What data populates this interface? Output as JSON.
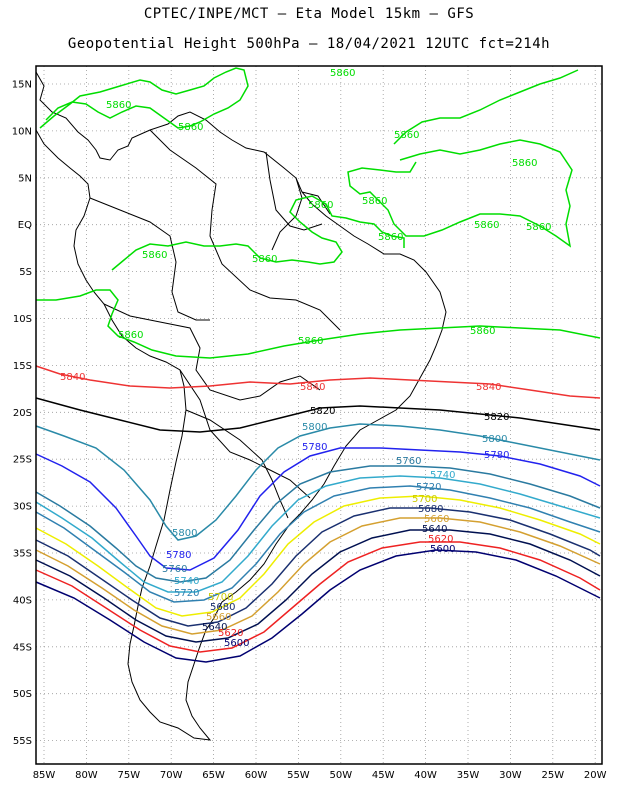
{
  "header": {
    "title_line1": "CPTEC/INPE/MCT –  Eta Model 15km – GFS",
    "title_line2": "Geopotential Height 500hPa – 18/04/2021 12UTC fct=214h"
  },
  "axes": {
    "lat_labels": [
      "15N",
      "10N",
      "5N",
      "EQ",
      "5S",
      "10S",
      "15S",
      "20S",
      "25S",
      "30S",
      "35S",
      "40S",
      "45S",
      "50S",
      "55S"
    ],
    "lon_labels": [
      "85W",
      "80W",
      "75W",
      "70W",
      "65W",
      "60W",
      "55W",
      "50W",
      "45W",
      "40W",
      "35W",
      "30W",
      "25W",
      "20W"
    ]
  },
  "colors": {
    "c5860": "#00dd00",
    "c5840": "#ee3333",
    "c5820": "#000000",
    "c5800": "#2a8aa8",
    "c5780": "#2222ee",
    "c5760": "#2a7aa0",
    "c5740": "#33aacc",
    "c5720": "#3080b0",
    "c5700": "#eeee00",
    "c5680": "#1a3070",
    "c5660": "#d4a030",
    "c5640": "#001050",
    "c5620": "#ee2222",
    "c5600": "#000070"
  },
  "contours": {
    "c5860": {
      "label": "5860"
    },
    "c5840": {
      "label": "5840"
    },
    "c5820": {
      "label": "5820"
    },
    "c5800": {
      "label": "5800"
    },
    "c5780": {
      "label": "5780"
    },
    "c5760": {
      "label": "5760"
    },
    "c5740": {
      "label": "5740"
    },
    "c5720": {
      "label": "5720"
    },
    "c5700": {
      "label": "5700"
    },
    "c5680": {
      "label": "5680"
    },
    "c5660": {
      "label": "5660"
    },
    "c5640": {
      "label": "5640"
    },
    "c5620": {
      "label": "5620"
    },
    "c5600": {
      "label": "5600"
    }
  }
}
